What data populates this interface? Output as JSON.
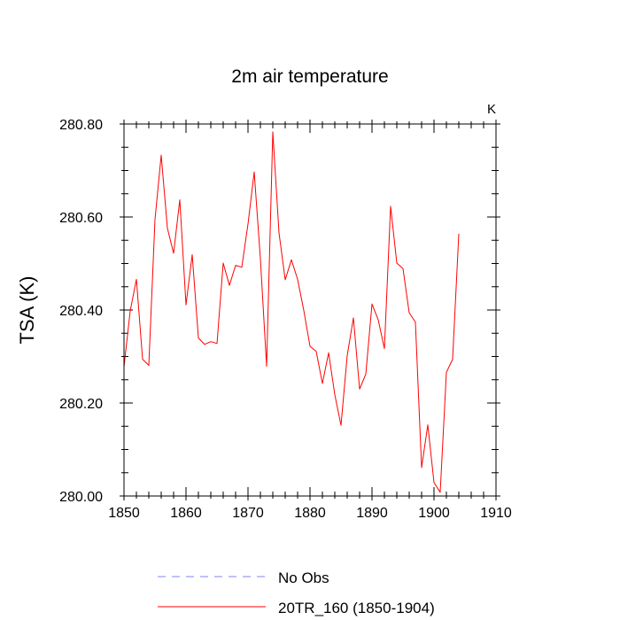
{
  "chart_data": {
    "type": "line",
    "title": "2m air temperature",
    "units_label": "K",
    "xlabel": "",
    "ylabel": "TSA  (K)",
    "xlim": [
      1850,
      1910
    ],
    "ylim": [
      280.0,
      280.8
    ],
    "x_ticks": [
      1850,
      1860,
      1870,
      1880,
      1890,
      1900,
      1910
    ],
    "x_tick_labels": [
      "1850",
      "1860",
      "1870",
      "1880",
      "1890",
      "1900",
      "1910"
    ],
    "y_ticks": [
      280.0,
      280.2,
      280.4,
      280.6,
      280.8
    ],
    "y_tick_labels": [
      "280.00",
      "280.20",
      "280.40",
      "280.60",
      "280.80"
    ],
    "legend": [
      {
        "label": "No Obs",
        "color": "#8080ff",
        "style": "dashed"
      },
      {
        "label": "20TR_160 (1850-1904)",
        "color": "#ff0000",
        "style": "solid"
      }
    ],
    "series": [
      {
        "name": "20TR_160 (1850-1904)",
        "color": "#ff0000",
        "x": [
          1850,
          1851,
          1852,
          1853,
          1854,
          1855,
          1856,
          1857,
          1858,
          1859,
          1860,
          1861,
          1862,
          1863,
          1864,
          1865,
          1866,
          1867,
          1868,
          1869,
          1870,
          1871,
          1872,
          1873,
          1874,
          1875,
          1876,
          1877,
          1878,
          1879,
          1880,
          1881,
          1882,
          1883,
          1884,
          1885,
          1886,
          1887,
          1888,
          1889,
          1890,
          1891,
          1892,
          1893,
          1894,
          1895,
          1896,
          1897,
          1898,
          1899,
          1900,
          1901,
          1902,
          1903,
          1904
        ],
        "values": [
          280.278,
          280.398,
          280.466,
          280.294,
          280.281,
          280.595,
          280.733,
          280.576,
          280.522,
          280.637,
          280.411,
          280.519,
          280.34,
          280.326,
          280.332,
          280.328,
          280.501,
          280.453,
          280.496,
          280.492,
          280.585,
          280.697,
          280.51,
          280.279,
          280.783,
          280.566,
          280.465,
          280.508,
          280.466,
          280.399,
          280.322,
          280.311,
          280.242,
          280.308,
          280.218,
          280.152,
          280.302,
          280.383,
          280.23,
          280.262,
          280.413,
          280.379,
          280.317,
          280.623,
          280.501,
          280.489,
          280.394,
          280.374,
          280.061,
          280.153,
          280.029,
          280.008,
          280.266,
          280.294,
          280.564
        ]
      }
    ]
  }
}
